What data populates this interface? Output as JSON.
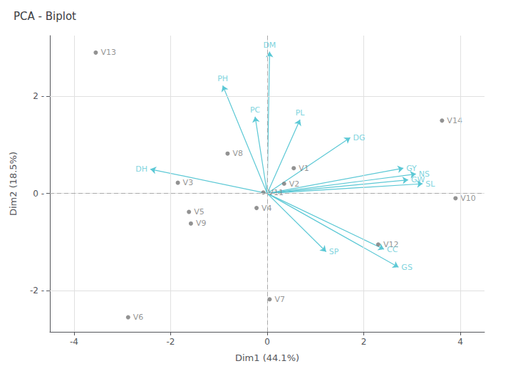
{
  "chart_data": {
    "type": "biplot",
    "title": "PCA - Biplot",
    "xlabel": "Dim1 (44.1%)",
    "ylabel": "Dim2 (18.5%)",
    "xlim": [
      -4.5,
      4.5
    ],
    "ylim": [
      -2.85,
      3.25
    ],
    "xticks": [
      -4,
      -2,
      0,
      2,
      4
    ],
    "yticks": [
      {
        "value": -2,
        "label": "-2 -"
      },
      {
        "value": 0,
        "label": "0 -"
      },
      {
        "value": 2,
        "label": "2 -"
      }
    ],
    "grid": true,
    "series": [
      {
        "type": "arrow",
        "color": "#5BC8D5",
        "labels": [
          "DM",
          "PH",
          "PC",
          "PL",
          "DG",
          "DH",
          "GY",
          "NS",
          "GW",
          "SL",
          "SP",
          "CC",
          "GS"
        ],
        "x": [
          0.05,
          -0.92,
          -0.25,
          0.68,
          1.72,
          -2.42,
          2.82,
          3.08,
          2.92,
          3.22,
          1.22,
          2.42,
          2.72
        ],
        "values": [
          2.92,
          2.22,
          1.58,
          1.52,
          1.15,
          0.5,
          0.52,
          0.4,
          0.28,
          0.2,
          -1.2,
          -1.15,
          -1.52
        ]
      },
      {
        "type": "scatter",
        "color": "#777777",
        "labels": [
          "V1",
          "V2",
          "V3",
          "V4",
          "V5",
          "V6",
          "V7",
          "V8",
          "V9",
          "V10",
          "V11",
          "V12",
          "V13",
          "V14"
        ],
        "x": [
          0.55,
          0.35,
          -1.85,
          -0.22,
          -1.62,
          -2.88,
          0.05,
          -0.82,
          -1.58,
          3.9,
          -0.08,
          2.3,
          -3.55,
          3.62
        ],
        "values": [
          0.52,
          0.2,
          0.22,
          -0.3,
          -0.38,
          -2.55,
          -2.18,
          0.82,
          -0.62,
          -0.1,
          0.02,
          -1.05,
          2.9,
          1.5
        ]
      }
    ]
  }
}
